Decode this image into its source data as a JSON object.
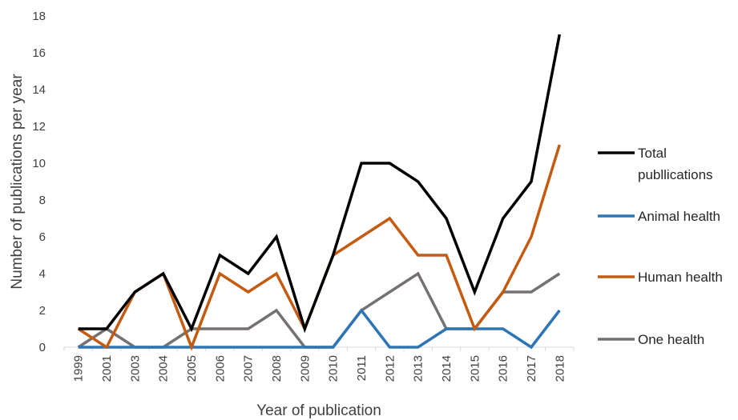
{
  "chart_data": {
    "type": "line",
    "xlabel": "Year of publication",
    "ylabel": "Number of publications per year",
    "ylim": [
      0,
      18
    ],
    "yticks": [
      0,
      2,
      4,
      6,
      8,
      10,
      12,
      14,
      16,
      18
    ],
    "grid": false,
    "legend_position": "right",
    "categories": [
      "1999",
      "2001",
      "2003",
      "2004",
      "2005",
      "2006",
      "2007",
      "2008",
      "2009",
      "2010",
      "2011",
      "2012",
      "2013",
      "2014",
      "2015",
      "2016",
      "2017",
      "2018"
    ],
    "series": [
      {
        "name": "Total publlications",
        "legend_lines": [
          "Total",
          "publlications"
        ],
        "color": "#000000",
        "values": [
          1,
          1,
          3,
          4,
          1,
          5,
          4,
          6,
          1,
          5,
          10,
          10,
          9,
          7,
          3,
          7,
          9,
          17
        ]
      },
      {
        "name": "Animal health",
        "legend_lines": [
          "Animal health"
        ],
        "color": "#2E75B6",
        "values": [
          0,
          0,
          0,
          0,
          0,
          0,
          0,
          0,
          0,
          0,
          2,
          0,
          0,
          1,
          1,
          1,
          0,
          2
        ]
      },
      {
        "name": "Human health",
        "legend_lines": [
          "Human health"
        ],
        "color": "#C55A11",
        "values": [
          1,
          0,
          3,
          4,
          0,
          4,
          3,
          4,
          1,
          5,
          6,
          7,
          5,
          5,
          1,
          3,
          6,
          11
        ]
      },
      {
        "name": "One health",
        "legend_lines": [
          "One health"
        ],
        "color": "#767171",
        "values": [
          0,
          1,
          0,
          0,
          1,
          1,
          1,
          2,
          0,
          0,
          2,
          3,
          4,
          1,
          1,
          3,
          3,
          4
        ]
      }
    ]
  }
}
